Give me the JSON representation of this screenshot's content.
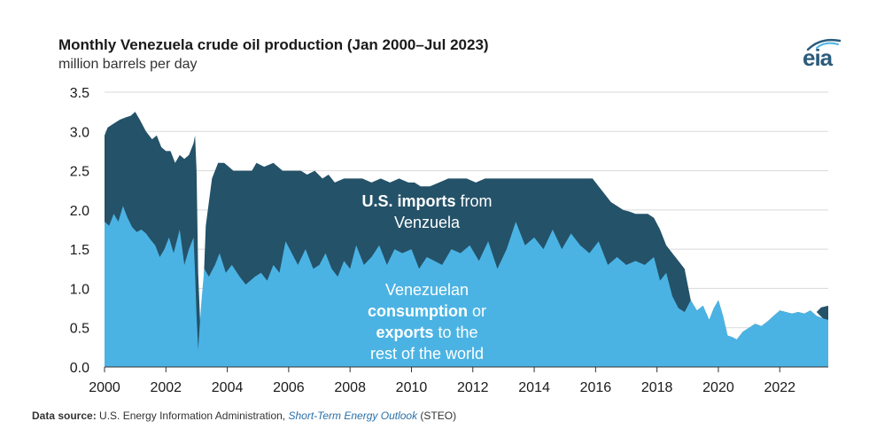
{
  "header": {
    "title": "Monthly Venezuela crude oil production (Jan 2000–Jul 2023)",
    "subtitle": "million barrels per day"
  },
  "logo": {
    "text": "eia",
    "icon": "eia-logo-icon",
    "color": "#2c5b7c"
  },
  "source": {
    "label": "Data source:",
    "text": " U.S. Energy Information Administration, ",
    "publication": "Short-Term Energy Outlook",
    "suffix": " (STEO)"
  },
  "annotations": {
    "imports": {
      "bold": "U.S. imports",
      "rest": " from",
      "line2": "Venzuela"
    },
    "consumption": {
      "line1_bold": "Venezuelan",
      "line2_bold": "consumption",
      "line2_rest": " or",
      "line3_bold": "exports",
      "line3_rest": " to the",
      "line4": "rest of the world"
    }
  },
  "chart_data": {
    "type": "area",
    "title": "Monthly Venezuela crude oil production (Jan 2000–Jul 2023)",
    "ylabel": "million barrels per day",
    "xlim": [
      2000.0,
      2023.58
    ],
    "ylim": [
      0,
      3.5
    ],
    "yticks": [
      "0.0",
      "0.5",
      "1.0",
      "1.5",
      "2.0",
      "2.5",
      "3.0",
      "3.5"
    ],
    "xticks": [
      "2000",
      "2002",
      "2004",
      "2006",
      "2008",
      "2010",
      "2012",
      "2014",
      "2016",
      "2018",
      "2020",
      "2022"
    ],
    "grid": true,
    "stacked": true,
    "colors": {
      "total": "#245269",
      "domestic": "#4bb3e3",
      "grid": "#d9d9d9"
    },
    "series": [
      {
        "name": "Venezuelan consumption or exports to the rest of the world",
        "x": [
          2000.0,
          2000.15,
          2000.3,
          2000.45,
          2000.6,
          2000.75,
          2000.9,
          2001.05,
          2001.2,
          2001.35,
          2001.5,
          2001.65,
          2001.8,
          2001.95,
          2002.1,
          2002.25,
          2002.45,
          2002.6,
          2002.75,
          2002.9,
          2002.95,
          2003.0,
          2003.05,
          2003.15,
          2003.25,
          2003.4,
          2003.6,
          2003.75,
          2003.95,
          2004.15,
          2004.4,
          2004.6,
          2004.9,
          2005.1,
          2005.3,
          2005.5,
          2005.7,
          2005.9,
          2006.1,
          2006.3,
          2006.55,
          2006.8,
          2007.0,
          2007.2,
          2007.4,
          2007.6,
          2007.8,
          2008.0,
          2008.2,
          2008.45,
          2008.7,
          2008.95,
          2009.2,
          2009.45,
          2009.7,
          2010.0,
          2010.25,
          2010.5,
          2010.75,
          2011.0,
          2011.3,
          2011.6,
          2011.9,
          2012.2,
          2012.5,
          2012.8,
          2013.1,
          2013.4,
          2013.7,
          2014.0,
          2014.3,
          2014.6,
          2014.9,
          2015.2,
          2015.5,
          2015.8,
          2016.1,
          2016.4,
          2016.7,
          2017.0,
          2017.3,
          2017.6,
          2017.9,
          2018.1,
          2018.3,
          2018.5,
          2018.7,
          2018.9,
          2019.1,
          2019.3,
          2019.5,
          2019.7,
          2019.85,
          2020.0,
          2020.15,
          2020.3,
          2020.45,
          2020.6,
          2020.8,
          2021.0,
          2021.2,
          2021.4,
          2021.6,
          2021.8,
          2022.0,
          2022.2,
          2022.4,
          2022.6,
          2022.8,
          2023.0,
          2023.2,
          2023.4,
          2023.58
        ],
        "values": [
          1.85,
          1.8,
          1.95,
          1.85,
          2.05,
          1.9,
          1.78,
          1.72,
          1.75,
          1.7,
          1.62,
          1.55,
          1.4,
          1.5,
          1.65,
          1.45,
          1.75,
          1.3,
          1.5,
          1.65,
          1.2,
          0.65,
          0.22,
          0.8,
          1.25,
          1.15,
          1.3,
          1.45,
          1.2,
          1.3,
          1.15,
          1.05,
          1.15,
          1.2,
          1.1,
          1.3,
          1.2,
          1.6,
          1.45,
          1.3,
          1.5,
          1.25,
          1.3,
          1.45,
          1.25,
          1.15,
          1.35,
          1.25,
          1.55,
          1.3,
          1.4,
          1.55,
          1.3,
          1.5,
          1.45,
          1.5,
          1.25,
          1.4,
          1.35,
          1.3,
          1.5,
          1.45,
          1.55,
          1.35,
          1.6,
          1.25,
          1.5,
          1.85,
          1.55,
          1.65,
          1.5,
          1.75,
          1.5,
          1.7,
          1.55,
          1.45,
          1.6,
          1.3,
          1.4,
          1.3,
          1.35,
          1.3,
          1.4,
          1.1,
          1.2,
          0.9,
          0.75,
          0.7,
          0.85,
          0.72,
          0.78,
          0.6,
          0.75,
          0.85,
          0.65,
          0.4,
          0.38,
          0.35,
          0.45,
          0.5,
          0.55,
          0.52,
          0.58,
          0.65,
          0.72,
          0.7,
          0.68,
          0.7,
          0.68,
          0.72,
          0.65,
          0.62,
          0.6
        ]
      },
      {
        "name": "U.S. imports from Venzuela",
        "x": [
          2000.0,
          2000.1,
          2000.3,
          2000.5,
          2000.7,
          2000.85,
          2001.0,
          2001.15,
          2001.35,
          2001.55,
          2001.7,
          2001.85,
          2002.0,
          2002.15,
          2002.3,
          2002.45,
          2002.6,
          2002.75,
          2002.9,
          2002.95,
          2003.0,
          2003.05,
          2003.15,
          2003.3,
          2003.5,
          2003.7,
          2003.9,
          2004.2,
          2004.5,
          2004.8,
          2004.95,
          2005.2,
          2005.5,
          2005.8,
          2006.1,
          2006.4,
          2006.6,
          2006.85,
          2007.1,
          2007.3,
          2007.5,
          2007.8,
          2008.1,
          2008.4,
          2008.7,
          2009.0,
          2009.3,
          2009.6,
          2009.9,
          2010.1,
          2010.3,
          2010.6,
          2010.9,
          2011.2,
          2011.5,
          2011.8,
          2012.1,
          2012.4,
          2012.7,
          2013.0,
          2013.3,
          2013.6,
          2013.9,
          2014.2,
          2014.5,
          2014.8,
          2015.1,
          2015.4,
          2015.7,
          2015.9,
          2016.1,
          2016.3,
          2016.5,
          2016.7,
          2016.9,
          2017.1,
          2017.3,
          2017.5,
          2017.7,
          2017.9,
          2018.1,
          2018.3,
          2018.5,
          2018.7,
          2018.9,
          2019.0,
          2019.1
        ],
        "totals": [
          2.95,
          3.05,
          3.1,
          3.15,
          3.18,
          3.2,
          3.25,
          3.15,
          3.0,
          2.9,
          2.95,
          2.8,
          2.75,
          2.75,
          2.6,
          2.7,
          2.65,
          2.7,
          2.85,
          2.95,
          2.5,
          1.2,
          0.25,
          1.8,
          2.4,
          2.6,
          2.6,
          2.5,
          2.5,
          2.5,
          2.6,
          2.55,
          2.6,
          2.5,
          2.5,
          2.5,
          2.45,
          2.5,
          2.4,
          2.45,
          2.35,
          2.4,
          2.4,
          2.4,
          2.35,
          2.4,
          2.35,
          2.4,
          2.35,
          2.35,
          2.3,
          2.3,
          2.35,
          2.4,
          2.4,
          2.4,
          2.35,
          2.4,
          2.4,
          2.4,
          2.4,
          2.4,
          2.4,
          2.4,
          2.4,
          2.4,
          2.4,
          2.4,
          2.4,
          2.4,
          2.3,
          2.2,
          2.1,
          2.05,
          2.0,
          1.98,
          1.95,
          1.95,
          1.95,
          1.9,
          1.75,
          1.55,
          1.45,
          1.35,
          1.25,
          1.05,
          0.85
        ]
      }
    ]
  }
}
